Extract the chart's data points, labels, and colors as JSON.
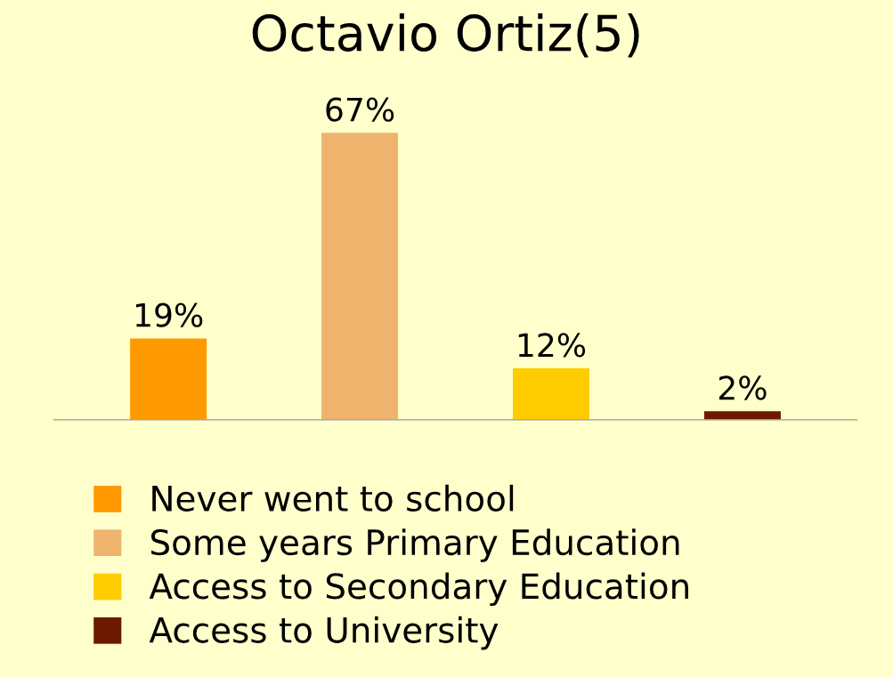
{
  "chart_data": {
    "type": "bar",
    "title": "Octavio Ortiz(5)",
    "categories": [
      null,
      null,
      null,
      null
    ],
    "series": [
      {
        "name": "Never went to school",
        "color": "#ff9900",
        "values": [
          19,
          null,
          null,
          null
        ],
        "value_labels": [
          "19%",
          null,
          null,
          null
        ]
      },
      {
        "name": "Some years Primary Education",
        "color": "#eeb46e",
        "values": [
          null,
          67,
          null,
          null
        ],
        "value_labels": [
          null,
          "67%",
          null,
          null
        ]
      },
      {
        "name": "Access to Secondary Education",
        "color": "#ffcc00",
        "values": [
          null,
          null,
          12,
          null
        ],
        "value_labels": [
          null,
          null,
          "12%",
          null
        ]
      },
      {
        "name": "Access to University",
        "color": "#6b1a00",
        "values": [
          null,
          null,
          null,
          2
        ],
        "value_labels": [
          null,
          null,
          null,
          "2%"
        ]
      }
    ],
    "stacked": true,
    "legend": "bottom",
    "grid": false
  }
}
